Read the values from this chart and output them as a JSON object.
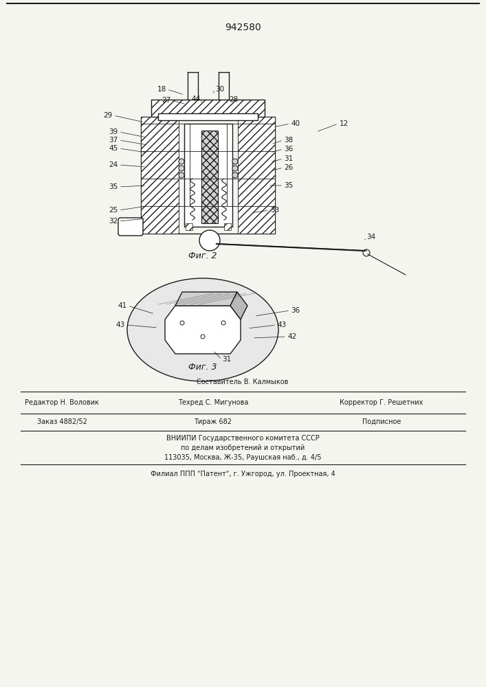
{
  "patent_number": "942580",
  "fig2_label": "Фиг. 2",
  "fig3_label": "Фиг. 3",
  "footer_line1": "Составитель В. Калмыков",
  "footer_line2_col1": "Редактор Н. Воловик",
  "footer_line2_col2": "Техред С. Мигунова",
  "footer_line2_col3": "Корректор Г. Решетних",
  "footer_line3_col1": "Заказ 4882/52",
  "footer_line3_col2": "Тираж 682",
  "footer_line3_col3": "Подписное",
  "footer_line4": "ВНИИПИ Государственного комитета СССР",
  "footer_line5": "по делам изобретений и открытий",
  "footer_line6": "113035, Москва, Ж-35, Раушская наб., д. 4/5",
  "footer_line7": "Филиал ППП \"Патент\", г. Ужгород, ул. Проектная, 4",
  "bg_color": "#f5f5f0",
  "line_color": "#1a1a1a",
  "hatch_color": "#1a1a1a",
  "label_fontsize": 7.5,
  "footer_fontsize": 7.0
}
